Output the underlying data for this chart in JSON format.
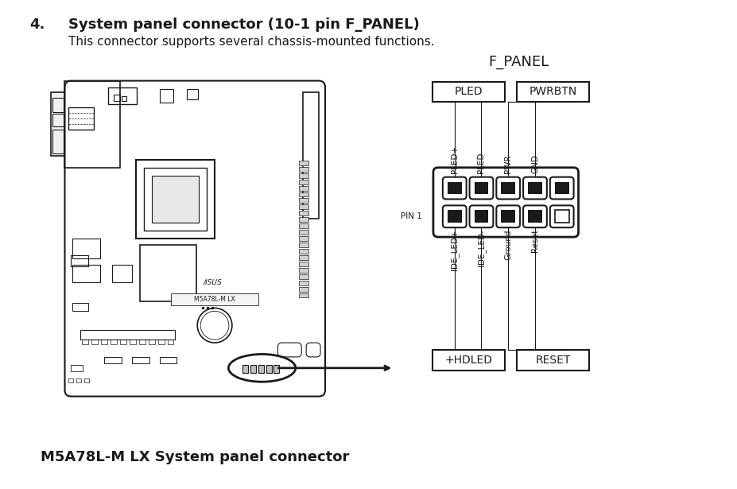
{
  "bg_color": "#ffffff",
  "title_number": "4.",
  "title_text": "System panel connector (10-1 pin F_PANEL)",
  "subtitle_text": "This connector supports several chassis-mounted functions.",
  "connector_title": "F_PANEL",
  "top_labels": [
    "PLED",
    "PWRBTN"
  ],
  "bottom_labels": [
    "+HDLED",
    "RESET"
  ],
  "top_pin_labels": [
    "PLED+",
    "PLED-",
    "PWR",
    "GND"
  ],
  "bottom_pin_labels": [
    "IDE_LED+",
    "IDE_LED-",
    "Ground",
    "Reset"
  ],
  "pin1_label": "PIN 1",
  "caption": "M5A78L-M LX System panel connector",
  "font_color": "#1a1a1a",
  "box_color": "#1a1a1a",
  "connector_color": "#1a1a1a",
  "pin_filled_color": "#1a1a1a",
  "pin_empty_color": "#ffffff"
}
